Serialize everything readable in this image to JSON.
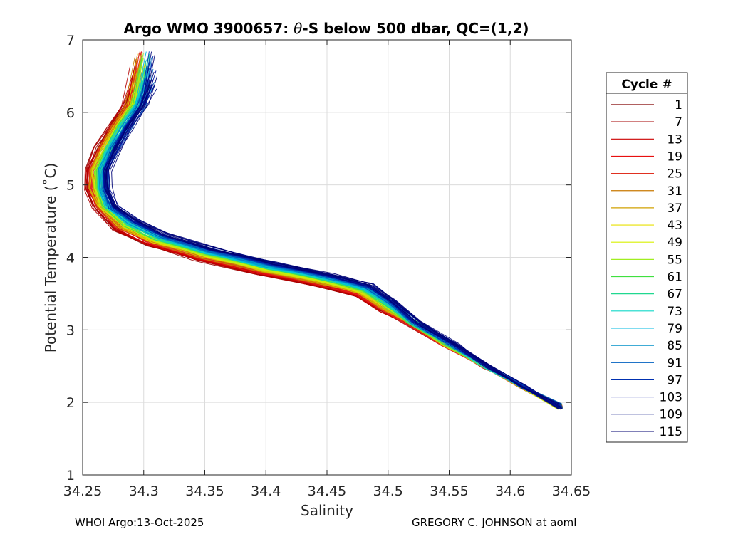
{
  "chart_data": {
    "type": "line",
    "title_prefix": "Argo WMO 3900657: ",
    "title_theta": "θ",
    "title_suffix": "-S below 500 dbar,  QC=(1,2)",
    "xlabel": "Salinity",
    "ylabel": "Potential Temperature (˚C)",
    "xlim": [
      34.25,
      34.65
    ],
    "ylim": [
      1,
      7
    ],
    "xticks": [
      "34.25",
      "34.3",
      "34.35",
      "34.4",
      "34.45",
      "34.5",
      "34.55",
      "34.6",
      "34.65"
    ],
    "yticks": [
      "1",
      "2",
      "3",
      "4",
      "5",
      "6",
      "7"
    ],
    "grid": true,
    "legend": {
      "title": "Cycle #",
      "position": "outside-right",
      "entries": [
        {
          "label": "1",
          "color": "#800000"
        },
        {
          "label": "7",
          "color": "#a50000"
        },
        {
          "label": "13",
          "color": "#cc0000"
        },
        {
          "label": "19",
          "color": "#e81010"
        },
        {
          "label": "25",
          "color": "#e03020"
        },
        {
          "label": "31",
          "color": "#c87800"
        },
        {
          "label": "37",
          "color": "#d0a000"
        },
        {
          "label": "43",
          "color": "#e8e000"
        },
        {
          "label": "49",
          "color": "#d8f000"
        },
        {
          "label": "55",
          "color": "#a0ee20"
        },
        {
          "label": "61",
          "color": "#40e040"
        },
        {
          "label": "67",
          "color": "#20d890"
        },
        {
          "label": "73",
          "color": "#10d8c8"
        },
        {
          "label": "79",
          "color": "#00b8e0"
        },
        {
          "label": "85",
          "color": "#0090c8"
        },
        {
          "label": "91",
          "color": "#0060c0"
        },
        {
          "label": "97",
          "color": "#0030b0"
        },
        {
          "label": "103",
          "color": "#0010a0"
        },
        {
          "label": "109",
          "color": "#000a80"
        },
        {
          "label": "115",
          "color": "#000070"
        }
      ]
    },
    "series_curve": {
      "description": "theta-S profiles for cycles 1-115, all following a common curve",
      "salinity": [
        34.3,
        34.292,
        34.28,
        34.27,
        34.262,
        34.262,
        34.268,
        34.285,
        34.31,
        34.35,
        34.4,
        34.45,
        34.48,
        34.5,
        34.52,
        34.55,
        34.58,
        34.61,
        34.64
      ],
      "theta": [
        6.4,
        6.1,
        5.8,
        5.5,
        5.2,
        4.95,
        4.7,
        4.45,
        4.25,
        4.05,
        3.85,
        3.68,
        3.55,
        3.33,
        3.1,
        2.8,
        2.5,
        2.22,
        1.92
      ]
    }
  },
  "footer": {
    "left": "WHOI Argo:13-Oct-2025",
    "right": "GREGORY C. JOHNSON at aoml"
  }
}
